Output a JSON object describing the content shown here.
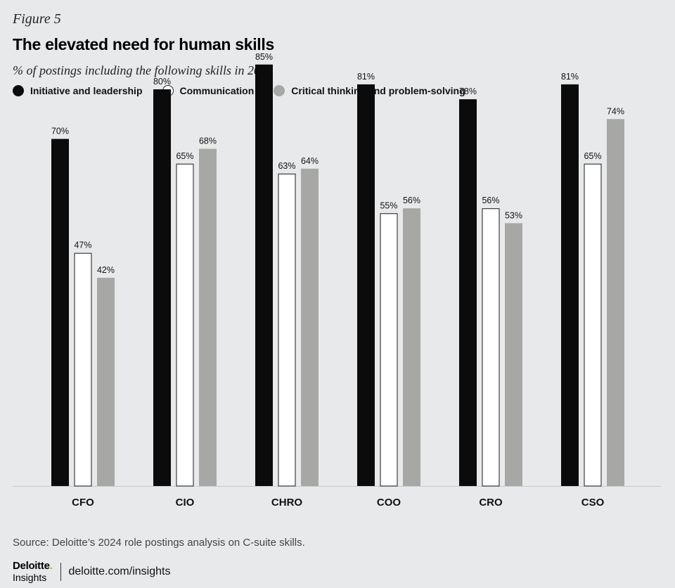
{
  "figure_label": "Figure 5",
  "colors": {
    "background": "#e8e9eb",
    "initiative": "#0b0b0b",
    "communication": "#ffffff",
    "critical": "#a7a7a5",
    "axis": "#c9cacc",
    "brand_green": "#86bc25"
  },
  "source": "Source: Deloitte’s 2024 role postings analysis on C-suite skills.",
  "footer": {
    "brand": "Deloitte",
    "brand_dot": ".",
    "brand_sub": "Insights",
    "url": "deloitte.com/insights"
  },
  "chart_data": {
    "type": "bar",
    "title": "The elevated need for human skills",
    "subtitle": "% of postings including the following skills in 2023",
    "categories": [
      "CFO",
      "CIO",
      "CHRO",
      "COO",
      "CRO",
      "CSO"
    ],
    "series": [
      {
        "name": "Initiative and leadership",
        "values": [
          70,
          80,
          85,
          81,
          78,
          81
        ]
      },
      {
        "name": "Communication",
        "values": [
          47,
          65,
          63,
          55,
          56,
          65
        ]
      },
      {
        "name": "Critical thinking and problem-solving",
        "values": [
          42,
          68,
          64,
          56,
          53,
          74
        ]
      }
    ],
    "value_suffix": "%",
    "ylim": [
      0,
      100
    ],
    "grid": false,
    "legend_position": "top-left"
  }
}
